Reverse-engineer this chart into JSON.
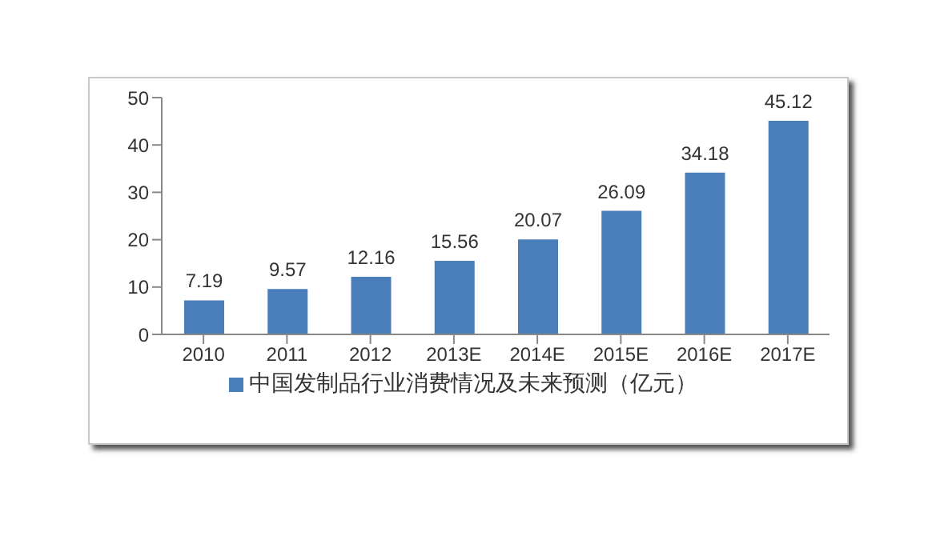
{
  "chart_data": {
    "type": "bar",
    "categories": [
      "2010",
      "2011",
      "2012",
      "2013E",
      "2014E",
      "2015E",
      "2016E",
      "2017E"
    ],
    "series": [
      {
        "name": "中国发制品行业消费情况及未来预测（亿元）",
        "color": "#4a7ebb",
        "values": [
          7.19,
          9.57,
          12.16,
          15.56,
          20.07,
          26.09,
          34.18,
          45.12
        ]
      }
    ],
    "ylim": [
      0,
      50
    ],
    "yticks": [
      0,
      10,
      20,
      30,
      40,
      50
    ],
    "grid": false,
    "legend": "bottom",
    "data_labels": true
  }
}
